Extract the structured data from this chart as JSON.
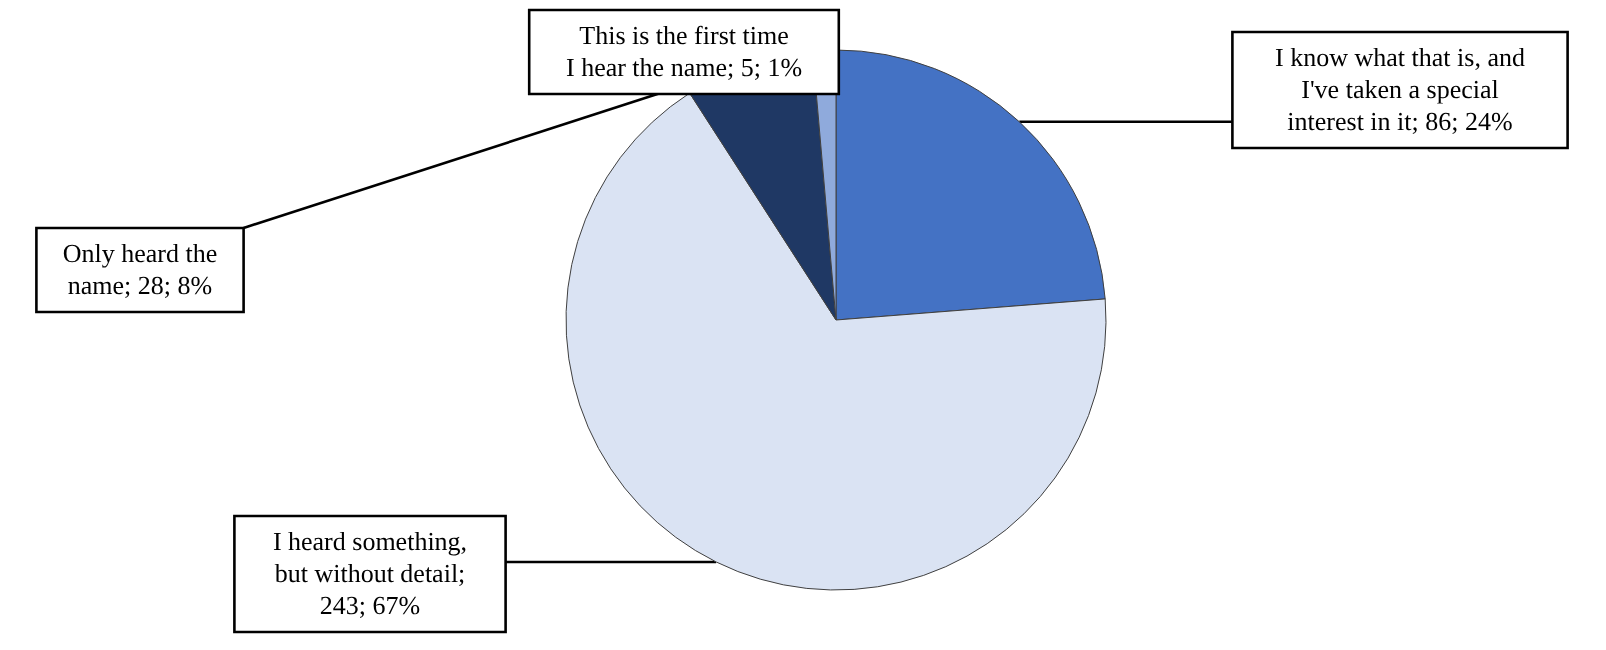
{
  "chart_data": {
    "type": "pie",
    "categories": [
      "I know what that is, and I've taken a special interest in it",
      "I heard something, but without detail",
      "Only heard the name",
      "This is the first time I hear the name"
    ],
    "values": [
      86,
      243,
      28,
      5
    ],
    "colors": [
      "#4472c4",
      "#dae3f3",
      "#1f3864",
      "#8faadc"
    ],
    "value_labels": [
      "; 86; 24%",
      "; 243; 67%",
      "; 28; 8%",
      "; 5; 1%"
    ]
  }
}
